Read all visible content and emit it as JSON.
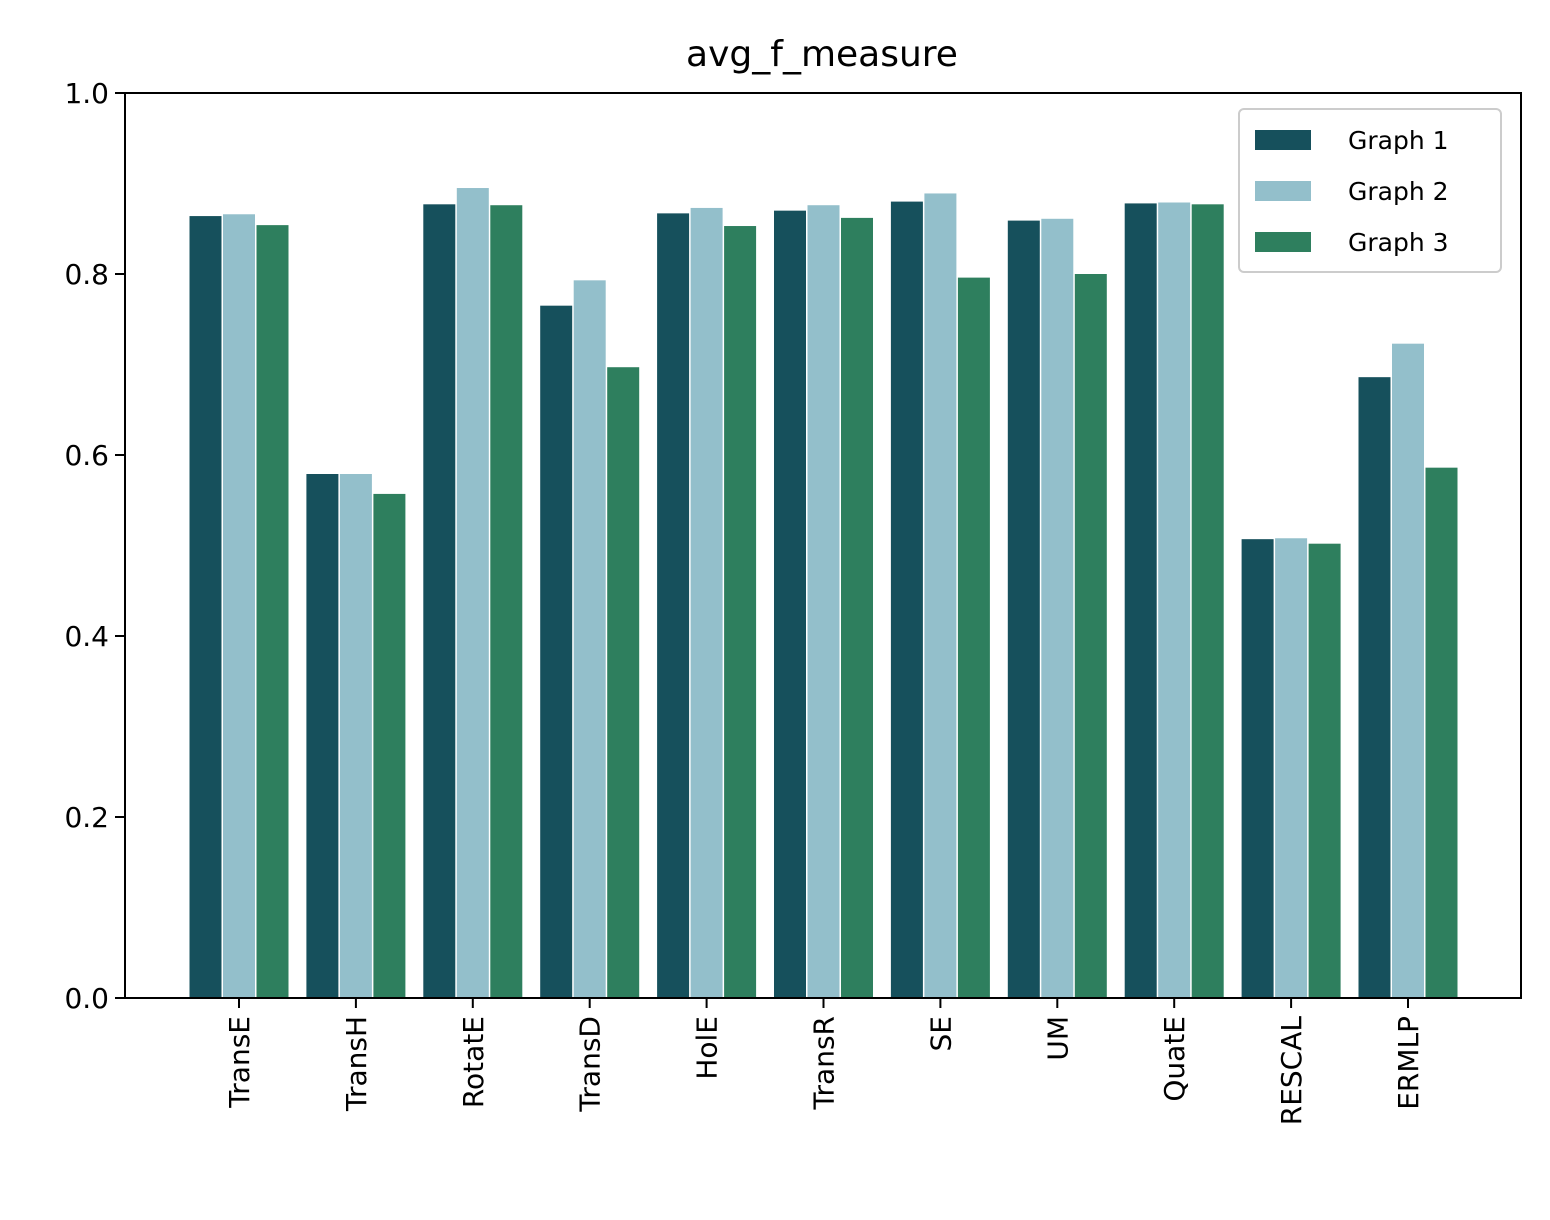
{
  "chart_data": {
    "type": "bar",
    "title": "avg_f_measure",
    "xlabel": "",
    "ylabel": "",
    "ylim": [
      0,
      1.0
    ],
    "yticks": [
      "0.0",
      "0.2",
      "0.4",
      "0.6",
      "0.8",
      "1.0"
    ],
    "categories": [
      "TransE",
      "TransH",
      "RotatE",
      "TransD",
      "HolE",
      "TransR",
      "SE",
      "UM",
      "QuatE",
      "RESCAL",
      "ERMLP"
    ],
    "series": [
      {
        "name": "Graph 1",
        "color": "#16505c",
        "values": [
          0.864,
          0.579,
          0.877,
          0.765,
          0.867,
          0.87,
          0.88,
          0.859,
          0.878,
          0.507,
          0.686
        ]
      },
      {
        "name": "Graph 2",
        "color": "#93bfcb",
        "values": [
          0.866,
          0.579,
          0.895,
          0.793,
          0.873,
          0.876,
          0.889,
          0.861,
          0.879,
          0.508,
          0.723
        ]
      },
      {
        "name": "Graph 3",
        "color": "#2e7f5e",
        "values": [
          0.854,
          0.557,
          0.876,
          0.697,
          0.853,
          0.862,
          0.796,
          0.8,
          0.877,
          0.502,
          0.586
        ]
      }
    ],
    "grid": false,
    "legend": {
      "position": "top-right"
    }
  }
}
